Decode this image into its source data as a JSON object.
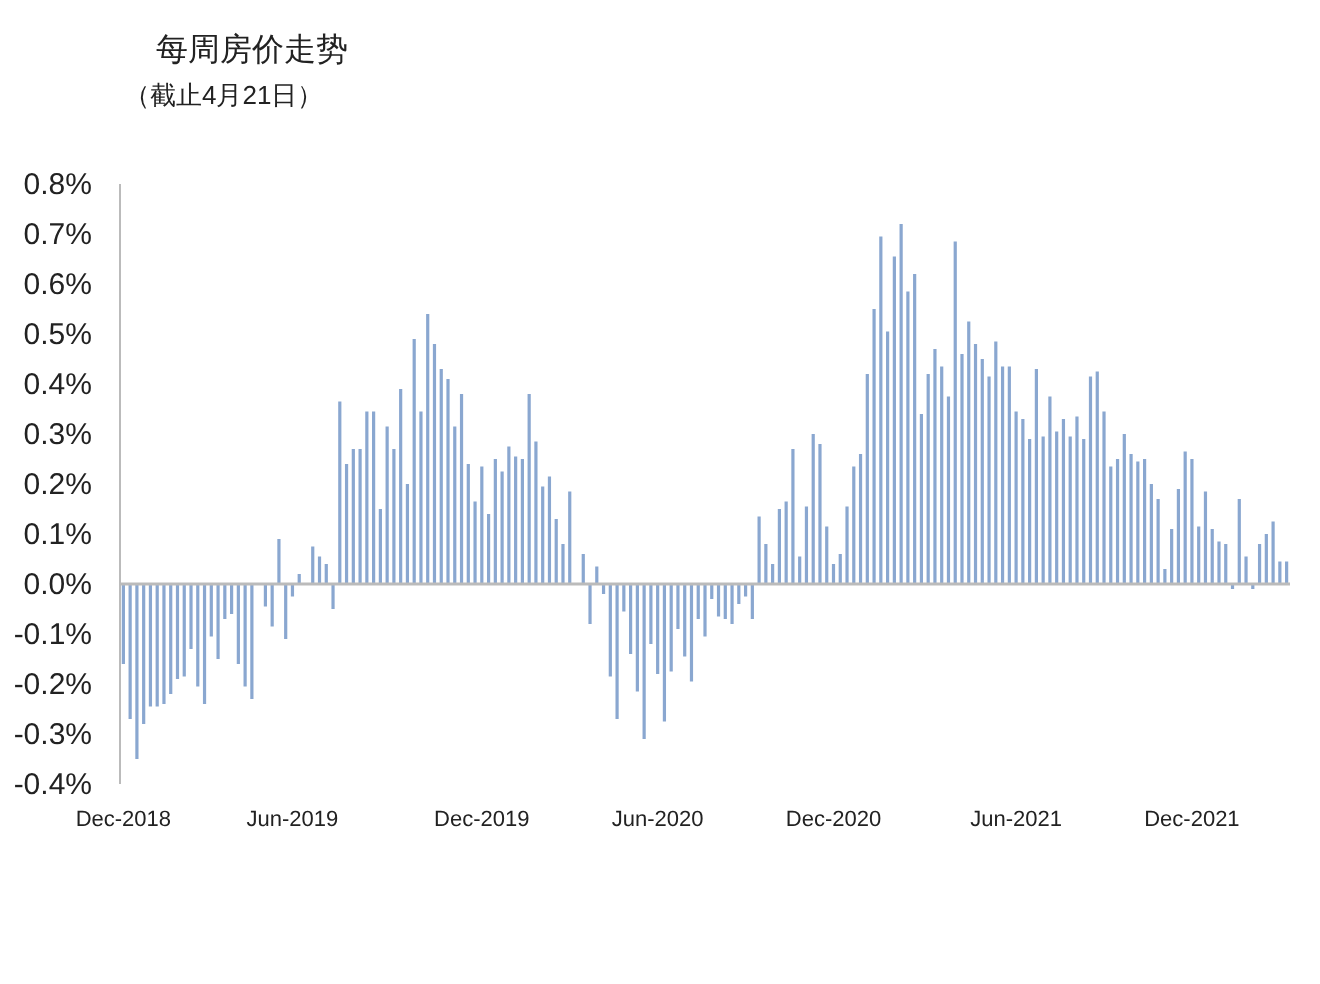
{
  "chart_data": {
    "type": "bar",
    "title": "每周房价走势",
    "subtitle": "（截止4月21日）",
    "color": "#8aa7d0",
    "categories": [
      "Dec-2018",
      null,
      null,
      null,
      null,
      null,
      null,
      null,
      null,
      null,
      null,
      null,
      null,
      null,
      null,
      null,
      null,
      null,
      null,
      null,
      null,
      null,
      null,
      null,
      null,
      "Jun-2019",
      null,
      null,
      null,
      null,
      null,
      null,
      null,
      null,
      null,
      null,
      null,
      null,
      null,
      null,
      null,
      null,
      null,
      null,
      null,
      null,
      null,
      null,
      null,
      null,
      null,
      null,
      null,
      "Dec-2019",
      null,
      null,
      null,
      null,
      null,
      null,
      null,
      null,
      null,
      null,
      null,
      null,
      null,
      null,
      null,
      null,
      null,
      null,
      null,
      null,
      null,
      null,
      null,
      null,
      null,
      "Jun-2020",
      null,
      null,
      null,
      null,
      null,
      null,
      null,
      null,
      null,
      null,
      null,
      null,
      null,
      null,
      null,
      null,
      null,
      null,
      null,
      null,
      null,
      null,
      null,
      null,
      null,
      "Dec-2020",
      null,
      null,
      null,
      null,
      null,
      null,
      null,
      null,
      null,
      null,
      null,
      null,
      null,
      null,
      null,
      null,
      null,
      null,
      null,
      null,
      null,
      null,
      null,
      null,
      null,
      null,
      "Jun-2021",
      null,
      null,
      null,
      null,
      null,
      null,
      null,
      null,
      null,
      null,
      null,
      null,
      null,
      null,
      null,
      null,
      null,
      null,
      null,
      null,
      null,
      null,
      null,
      null,
      null,
      "Dec-2021",
      null,
      null,
      null,
      null,
      null,
      null,
      null,
      null,
      null,
      null,
      null,
      null,
      null,
      null
    ],
    "values": [
      -0.16,
      -0.27,
      -0.35,
      -0.28,
      -0.245,
      -0.245,
      -0.24,
      -0.22,
      -0.19,
      -0.185,
      -0.13,
      -0.205,
      -0.24,
      -0.105,
      -0.15,
      -0.07,
      -0.06,
      -0.16,
      -0.205,
      -0.23,
      0,
      -0.045,
      -0.085,
      0.09,
      -0.11,
      -0.025,
      0.02,
      null,
      0.075,
      0.055,
      0.04,
      -0.05,
      0.365,
      0.24,
      0.27,
      0.27,
      0.345,
      0.345,
      0.15,
      0.315,
      0.27,
      0.39,
      0.2,
      0.49,
      0.345,
      0.54,
      0.48,
      0.43,
      0.41,
      0.315,
      0.38,
      0.24,
      0.165,
      0.235,
      0.14,
      0.25,
      0.225,
      0.275,
      0.255,
      0.25,
      0.38,
      0.285,
      0.195,
      0.215,
      0.13,
      0.08,
      0.185,
      null,
      0.06,
      -0.08,
      0.035,
      -0.02,
      -0.185,
      -0.27,
      -0.055,
      -0.14,
      -0.215,
      -0.31,
      -0.12,
      -0.18,
      -0.275,
      -0.175,
      -0.09,
      -0.145,
      -0.195,
      -0.07,
      -0.105,
      -0.03,
      -0.065,
      -0.07,
      -0.08,
      -0.04,
      -0.025,
      -0.07,
      0.135,
      0.08,
      0.04,
      0.15,
      0.165,
      0.27,
      0.055,
      0.155,
      0.3,
      0.28,
      0.115,
      0.04,
      0.06,
      0.155,
      0.235,
      0.26,
      0.42,
      0.55,
      0.695,
      0.505,
      0.655,
      0.72,
      0.585,
      0.62,
      0.34,
      0.42,
      0.47,
      0.435,
      0.375,
      0.685,
      0.46,
      0.525,
      0.48,
      0.45,
      0.415,
      0.485,
      0.435,
      0.435,
      0.345,
      0.33,
      0.29,
      0.43,
      0.295,
      0.375,
      0.305,
      0.33,
      0.295,
      0.335,
      0.29,
      0.415,
      0.425,
      0.345,
      0.235,
      0.25,
      0.3,
      0.26,
      0.245,
      0.25,
      0.2,
      0.17,
      0.03,
      0.11,
      0.19,
      0.265,
      0.25,
      0.115,
      0.185,
      0.11,
      0.085,
      0.08,
      -0.01,
      0.17,
      0.055,
      -0.01,
      0.08,
      0.1,
      0.125,
      0.045,
      0.045
    ],
    "ylim": [
      -0.4,
      0.8
    ],
    "yticks": [
      {
        "value": -0.4,
        "label": "-0.4%"
      },
      {
        "value": -0.3,
        "label": "-0.3%"
      },
      {
        "value": -0.2,
        "label": "-0.2%"
      },
      {
        "value": -0.1,
        "label": "-0.1%"
      },
      {
        "value": 0,
        "label": "0.0%"
      },
      {
        "value": 0.1,
        "label": "0.1%"
      },
      {
        "value": 0.2,
        "label": "0.2%"
      },
      {
        "value": 0.3,
        "label": "0.3%"
      },
      {
        "value": 0.4,
        "label": "0.4%"
      },
      {
        "value": 0.5,
        "label": "0.5%"
      },
      {
        "value": 0.6,
        "label": "0.6%"
      },
      {
        "value": 0.7,
        "label": "0.7%"
      },
      {
        "value": 0.8,
        "label": "0.8%"
      }
    ]
  }
}
